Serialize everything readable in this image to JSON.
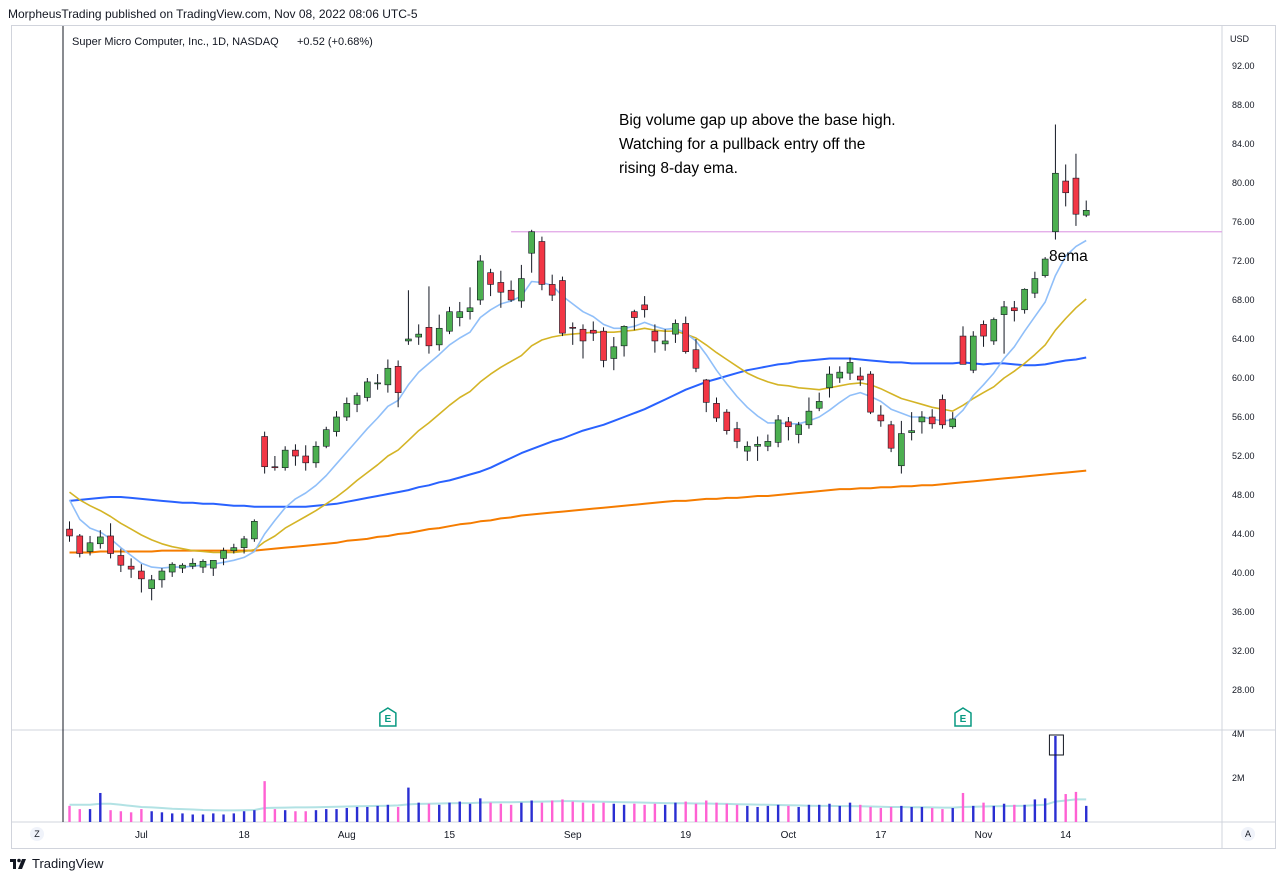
{
  "header": "MorpheusTrading published on TradingView.com, Nov 08, 2022 08:06 UTC-5",
  "footer": {
    "brand": "TradingView"
  },
  "chart_data": {
    "type": "candlestick",
    "title": "Super Micro Computer, Inc., 1D, NASDAQ",
    "change": "+0.52 (+0.68%)",
    "currency": "USD",
    "ylim": [
      24.5,
      94.5
    ],
    "y_ticks": [
      "92.00",
      "88.00",
      "84.00",
      "80.00",
      "76.00",
      "72.00",
      "68.00",
      "64.00",
      "60.00",
      "56.00",
      "52.00",
      "48.00",
      "44.00",
      "40.00",
      "36.00",
      "32.00",
      "28.00"
    ],
    "volume_ticks": [
      "4M",
      "2M"
    ],
    "x_ticks": [
      {
        "label": "Jul",
        "bar": 7
      },
      {
        "label": "18",
        "bar": 17
      },
      {
        "label": "Aug",
        "bar": 27
      },
      {
        "label": "15",
        "bar": 37
      },
      {
        "label": "Sep",
        "bar": 49
      },
      {
        "label": "19",
        "bar": 60
      },
      {
        "label": "Oct",
        "bar": 70
      },
      {
        "label": "17",
        "bar": 79
      },
      {
        "label": "Nov",
        "bar": 89
      },
      {
        "label": "14",
        "bar": 97
      }
    ],
    "corner_labels": {
      "left": "Z",
      "right": "A"
    },
    "annotation": [
      "Big volume gap up above the base high.",
      "Watching for a pullback entry off the",
      "rising 8-day ema."
    ],
    "ema_label": "8ema",
    "earnings_marker": "E",
    "earnings_bars": [
      31,
      87
    ],
    "resistance": {
      "value": 75.0,
      "from_bar": 43
    },
    "colors": {
      "up": "#4caf50",
      "down": "#f23645",
      "ema8": "#90bff9",
      "ema21": "#d4b426",
      "sma50": "#2962ff",
      "sma200": "#f57c00",
      "resistance": "#e1a4e6",
      "vol_up": "#2a2ed2",
      "vol_down": "#ff61d3",
      "vol_ma": "#b2e2e4"
    },
    "candles": [
      [
        44.5,
        45.3,
        43.2,
        43.8
      ],
      [
        43.8,
        44.0,
        41.6,
        42.0
      ],
      [
        42.2,
        43.8,
        41.8,
        43.1
      ],
      [
        43.0,
        44.4,
        42.5,
        43.7
      ],
      [
        43.8,
        45.1,
        41.5,
        42.0
      ],
      [
        41.8,
        42.5,
        40.1,
        40.8
      ],
      [
        40.7,
        41.5,
        39.5,
        40.4
      ],
      [
        40.2,
        40.9,
        38.0,
        39.4
      ],
      [
        38.4,
        39.8,
        37.2,
        39.3
      ],
      [
        39.3,
        40.5,
        38.5,
        40.2
      ],
      [
        40.1,
        41.1,
        39.6,
        40.9
      ],
      [
        40.5,
        41.0,
        40.0,
        40.8
      ],
      [
        40.7,
        41.5,
        40.4,
        41.0
      ],
      [
        40.6,
        41.4,
        40.0,
        41.2
      ],
      [
        40.5,
        41.2,
        39.7,
        41.3
      ],
      [
        41.5,
        42.6,
        40.8,
        42.3
      ],
      [
        42.3,
        43.0,
        42.0,
        42.6
      ],
      [
        42.6,
        43.8,
        42.0,
        43.5
      ],
      [
        43.5,
        45.5,
        43.2,
        45.3
      ],
      [
        54.0,
        54.5,
        50.2,
        50.9
      ],
      [
        50.9,
        52.0,
        50.5,
        50.8
      ],
      [
        50.8,
        53.0,
        50.5,
        52.6
      ],
      [
        52.6,
        53.2,
        51.0,
        52.0
      ],
      [
        52.0,
        53.1,
        50.5,
        51.3
      ],
      [
        51.3,
        53.5,
        50.8,
        53.0
      ],
      [
        53.0,
        55.0,
        52.8,
        54.7
      ],
      [
        54.5,
        56.6,
        54.0,
        56.0
      ],
      [
        56.0,
        58.0,
        55.6,
        57.4
      ],
      [
        57.3,
        58.5,
        56.5,
        58.2
      ],
      [
        58.0,
        60.0,
        57.6,
        59.6
      ],
      [
        59.5,
        60.4,
        58.8,
        59.5
      ],
      [
        59.3,
        61.9,
        58.5,
        61.0
      ],
      [
        61.2,
        61.8,
        57.0,
        58.5
      ],
      [
        63.8,
        69.0,
        63.4,
        64.0
      ],
      [
        64.2,
        65.5,
        63.4,
        64.5
      ],
      [
        65.2,
        69.4,
        62.5,
        63.3
      ],
      [
        63.4,
        66.5,
        62.8,
        65.1
      ],
      [
        64.8,
        67.3,
        64.5,
        66.8
      ],
      [
        66.2,
        67.8,
        65.3,
        66.8
      ],
      [
        66.8,
        69.3,
        66.0,
        67.2
      ],
      [
        68.0,
        72.6,
        67.5,
        72.0
      ],
      [
        70.8,
        71.2,
        68.4,
        69.6
      ],
      [
        69.8,
        71.0,
        67.2,
        68.8
      ],
      [
        69.0,
        70.0,
        67.8,
        68.0
      ],
      [
        67.9,
        71.6,
        67.2,
        70.2
      ],
      [
        72.8,
        75.2,
        70.8,
        75.0
      ],
      [
        74.0,
        74.5,
        69.0,
        69.6
      ],
      [
        69.6,
        70.6,
        67.9,
        68.5
      ],
      [
        70.0,
        70.4,
        64.3,
        64.6
      ],
      [
        65.2,
        65.7,
        63.4,
        65.1
      ],
      [
        65.0,
        65.5,
        62.0,
        63.8
      ],
      [
        64.9,
        65.8,
        63.8,
        64.6
      ],
      [
        64.8,
        65.2,
        61.1,
        61.8
      ],
      [
        62.0,
        64.2,
        60.8,
        63.2
      ],
      [
        63.3,
        65.4,
        62.2,
        65.3
      ],
      [
        66.8,
        67.0,
        64.9,
        66.2
      ],
      [
        67.5,
        68.4,
        66.2,
        67.0
      ],
      [
        64.8,
        65.5,
        62.6,
        63.8
      ],
      [
        63.5,
        65.0,
        62.8,
        63.8
      ],
      [
        64.5,
        66.0,
        63.6,
        65.6
      ],
      [
        65.6,
        66.3,
        62.5,
        62.7
      ],
      [
        62.9,
        64.0,
        60.6,
        61.0
      ],
      [
        59.8,
        59.9,
        56.5,
        57.5
      ],
      [
        57.4,
        58.0,
        55.5,
        55.9
      ],
      [
        56.5,
        56.8,
        54.2,
        54.6
      ],
      [
        54.8,
        55.5,
        52.8,
        53.5
      ],
      [
        52.5,
        53.5,
        51.5,
        53.0
      ],
      [
        53.0,
        54.0,
        51.5,
        53.2
      ],
      [
        53.0,
        54.2,
        52.5,
        53.5
      ],
      [
        53.4,
        56.2,
        52.9,
        55.7
      ],
      [
        55.5,
        56.0,
        53.6,
        55.0
      ],
      [
        54.2,
        55.5,
        53.3,
        55.2
      ],
      [
        55.2,
        58.0,
        54.8,
        56.6
      ],
      [
        56.9,
        58.5,
        56.6,
        57.6
      ],
      [
        59.0,
        61.2,
        58.0,
        60.4
      ],
      [
        60.0,
        61.2,
        59.5,
        60.6
      ],
      [
        60.5,
        62.1,
        59.8,
        61.6
      ],
      [
        60.2,
        61.1,
        59.2,
        59.8
      ],
      [
        60.4,
        60.7,
        56.3,
        56.5
      ],
      [
        56.2,
        57.2,
        55.0,
        55.6
      ],
      [
        55.2,
        55.6,
        52.4,
        52.8
      ],
      [
        51.0,
        55.6,
        50.2,
        54.3
      ],
      [
        54.4,
        56.5,
        53.6,
        54.6
      ],
      [
        55.5,
        56.6,
        54.3,
        56.0
      ],
      [
        56.0,
        56.8,
        54.8,
        55.3
      ],
      [
        57.8,
        58.3,
        54.8,
        55.2
      ],
      [
        55.0,
        56.5,
        54.8,
        55.8
      ],
      [
        64.3,
        65.3,
        61.8,
        61.4
      ],
      [
        60.8,
        64.8,
        60.5,
        64.3
      ],
      [
        65.5,
        65.9,
        63.2,
        64.3
      ],
      [
        63.8,
        66.2,
        63.4,
        66.0
      ],
      [
        66.5,
        67.9,
        62.5,
        67.3
      ],
      [
        67.2,
        67.9,
        65.8,
        66.9
      ],
      [
        67.0,
        69.2,
        66.6,
        69.1
      ],
      [
        68.7,
        70.9,
        68.2,
        70.2
      ],
      [
        70.5,
        72.4,
        70.3,
        72.2
      ],
      [
        75.0,
        86.0,
        74.2,
        81.0
      ],
      [
        80.2,
        81.9,
        77.6,
        79.0
      ],
      [
        80.5,
        83.0,
        75.6,
        76.8
      ],
      [
        76.7,
        78.2,
        76.5,
        77.2
      ]
    ],
    "ema8": [
      47.5,
      45.5,
      44.6,
      44.2,
      43.5,
      42.6,
      41.8,
      41.0,
      40.6,
      40.5,
      40.6,
      40.6,
      40.7,
      40.8,
      40.9,
      41.1,
      41.3,
      41.6,
      42.2,
      44.0,
      45.4,
      46.7,
      47.6,
      48.2,
      49.0,
      50.0,
      51.2,
      52.4,
      53.6,
      54.8,
      55.9,
      57.1,
      57.7,
      59.3,
      60.6,
      61.5,
      62.4,
      63.4,
      64.1,
      64.7,
      66.2,
      67.0,
      67.6,
      67.9,
      68.4,
      69.9,
      69.8,
      69.5,
      68.4,
      67.6,
      66.8,
      66.3,
      65.5,
      65.1,
      65.1,
      65.3,
      65.7,
      65.3,
      65.0,
      65.1,
      64.6,
      63.8,
      62.4,
      60.8,
      59.4,
      58.1,
      57.0,
      56.1,
      55.4,
      55.4,
      55.3,
      55.3,
      55.6,
      56.0,
      56.7,
      57.5,
      58.2,
      58.5,
      58.1,
      57.6,
      56.8,
      56.4,
      56.0,
      56.0,
      55.8,
      55.6,
      55.7,
      56.7,
      58.2,
      59.3,
      60.5,
      62.0,
      63.2,
      64.8,
      66.3,
      67.8,
      70.5,
      72.5,
      73.5,
      74.1
    ],
    "ema21": [
      48.3,
      47.5,
      46.9,
      46.4,
      45.8,
      45.1,
      44.5,
      43.9,
      43.4,
      43.0,
      42.7,
      42.5,
      42.3,
      42.2,
      42.1,
      42.1,
      42.1,
      42.2,
      42.4,
      43.2,
      43.8,
      44.6,
      45.2,
      45.8,
      46.4,
      47.1,
      47.8,
      48.6,
      49.5,
      50.3,
      51.1,
      52.0,
      52.6,
      53.6,
      54.6,
      55.4,
      56.3,
      57.2,
      58.0,
      58.6,
      59.6,
      60.4,
      61.1,
      61.7,
      62.3,
      63.3,
      63.9,
      64.2,
      64.4,
      64.5,
      64.6,
      64.7,
      64.7,
      64.7,
      64.8,
      64.9,
      65.1,
      64.9,
      64.8,
      64.8,
      64.5,
      64.1,
      63.4,
      62.6,
      61.9,
      61.2,
      60.5,
      60.0,
      59.6,
      59.3,
      59.2,
      59.0,
      58.9,
      58.8,
      59.0,
      59.2,
      59.4,
      59.5,
      59.3,
      58.9,
      58.4,
      57.9,
      57.6,
      57.3,
      57.0,
      56.8,
      56.6,
      57.2,
      57.9,
      58.5,
      59.1,
      60.0,
      60.7,
      61.5,
      62.4,
      63.4,
      64.9,
      66.1,
      67.2,
      68.1
    ],
    "sma50": [
      47.4,
      47.5,
      47.6,
      47.7,
      47.8,
      47.8,
      47.7,
      47.6,
      47.5,
      47.4,
      47.3,
      47.2,
      47.2,
      47.1,
      47.1,
      47.0,
      46.9,
      46.9,
      46.8,
      46.8,
      46.8,
      46.8,
      46.8,
      46.8,
      46.9,
      47.0,
      47.1,
      47.3,
      47.5,
      47.7,
      47.9,
      48.1,
      48.3,
      48.5,
      48.8,
      49.0,
      49.3,
      49.5,
      49.8,
      50.1,
      50.4,
      50.8,
      51.3,
      51.8,
      52.3,
      52.7,
      53.1,
      53.5,
      53.8,
      54.2,
      54.6,
      54.9,
      55.2,
      55.6,
      56.0,
      56.4,
      56.8,
      57.3,
      57.8,
      58.3,
      58.8,
      59.2,
      59.6,
      59.9,
      60.2,
      60.5,
      60.8,
      61.0,
      61.2,
      61.4,
      61.5,
      61.7,
      61.8,
      61.9,
      62.0,
      62.0,
      62.0,
      61.9,
      61.8,
      61.7,
      61.6,
      61.6,
      61.5,
      61.5,
      61.5,
      61.5,
      61.5,
      61.6,
      61.5,
      61.4,
      61.5,
      61.5,
      61.4,
      61.3,
      61.3,
      61.4,
      61.6,
      61.8,
      61.9,
      62.1
    ],
    "sma200": [
      42.1,
      42.1,
      42.1,
      42.2,
      42.2,
      42.2,
      42.2,
      42.2,
      42.2,
      42.3,
      42.3,
      42.3,
      42.3,
      42.3,
      42.3,
      42.3,
      42.3,
      42.3,
      42.3,
      42.4,
      42.5,
      42.6,
      42.7,
      42.8,
      42.9,
      43.0,
      43.1,
      43.3,
      43.4,
      43.5,
      43.7,
      43.8,
      44.0,
      44.1,
      44.3,
      44.5,
      44.6,
      44.8,
      45.0,
      45.1,
      45.3,
      45.4,
      45.6,
      45.7,
      45.9,
      46.0,
      46.1,
      46.2,
      46.3,
      46.4,
      46.5,
      46.6,
      46.7,
      46.8,
      46.9,
      47.0,
      47.1,
      47.2,
      47.3,
      47.4,
      47.4,
      47.5,
      47.6,
      47.6,
      47.7,
      47.7,
      47.8,
      47.9,
      47.9,
      48.0,
      48.1,
      48.2,
      48.3,
      48.4,
      48.5,
      48.6,
      48.6,
      48.7,
      48.7,
      48.8,
      48.8,
      48.9,
      48.9,
      49.0,
      49.0,
      49.1,
      49.2,
      49.3,
      49.4,
      49.5,
      49.6,
      49.7,
      49.8,
      49.9,
      50.0,
      50.1,
      50.2,
      50.3,
      50.4,
      50.5
    ],
    "volume": [
      0.75,
      0.6,
      0.6,
      1.35,
      0.55,
      0.5,
      0.45,
      0.6,
      0.5,
      0.45,
      0.4,
      0.4,
      0.35,
      0.35,
      0.4,
      0.35,
      0.4,
      0.5,
      0.55,
      1.9,
      0.6,
      0.55,
      0.5,
      0.5,
      0.55,
      0.6,
      0.6,
      0.65,
      0.7,
      0.7,
      0.75,
      0.8,
      0.7,
      1.6,
      0.9,
      0.85,
      0.8,
      0.9,
      0.95,
      0.85,
      1.1,
      0.9,
      0.85,
      0.8,
      0.9,
      1.0,
      0.9,
      1.0,
      1.05,
      0.95,
      0.9,
      0.85,
      0.9,
      0.85,
      0.8,
      0.85,
      0.8,
      0.85,
      0.8,
      0.9,
      0.95,
      0.85,
      1.0,
      0.9,
      0.85,
      0.8,
      0.75,
      0.7,
      0.75,
      0.8,
      0.75,
      0.7,
      0.8,
      0.8,
      0.85,
      0.75,
      0.9,
      0.8,
      0.7,
      0.65,
      0.7,
      0.75,
      0.7,
      0.7,
      0.65,
      0.6,
      0.65,
      1.35,
      0.75,
      0.9,
      0.75,
      0.85,
      0.8,
      0.8,
      1.05,
      1.1,
      4.0,
      1.3,
      1.4,
      0.75
    ],
    "volume_ma": [
      0.8,
      0.8,
      0.8,
      0.85,
      0.85,
      0.8,
      0.75,
      0.7,
      0.68,
      0.65,
      0.62,
      0.6,
      0.58,
      0.56,
      0.55,
      0.54,
      0.54,
      0.55,
      0.56,
      0.65,
      0.66,
      0.67,
      0.68,
      0.68,
      0.69,
      0.7,
      0.71,
      0.72,
      0.73,
      0.74,
      0.75,
      0.76,
      0.77,
      0.82,
      0.84,
      0.85,
      0.86,
      0.87,
      0.88,
      0.88,
      0.9,
      0.91,
      0.92,
      0.92,
      0.93,
      0.94,
      0.95,
      0.96,
      0.97,
      0.97,
      0.96,
      0.95,
      0.94,
      0.93,
      0.92,
      0.91,
      0.9,
      0.89,
      0.88,
      0.87,
      0.87,
      0.86,
      0.86,
      0.85,
      0.84,
      0.83,
      0.82,
      0.81,
      0.8,
      0.79,
      0.78,
      0.77,
      0.76,
      0.75,
      0.75,
      0.74,
      0.74,
      0.73,
      0.72,
      0.71,
      0.7,
      0.7,
      0.69,
      0.69,
      0.68,
      0.67,
      0.67,
      0.7,
      0.71,
      0.72,
      0.73,
      0.74,
      0.75,
      0.76,
      0.78,
      0.8,
      0.95,
      1.0,
      1.05,
      1.05
    ]
  }
}
